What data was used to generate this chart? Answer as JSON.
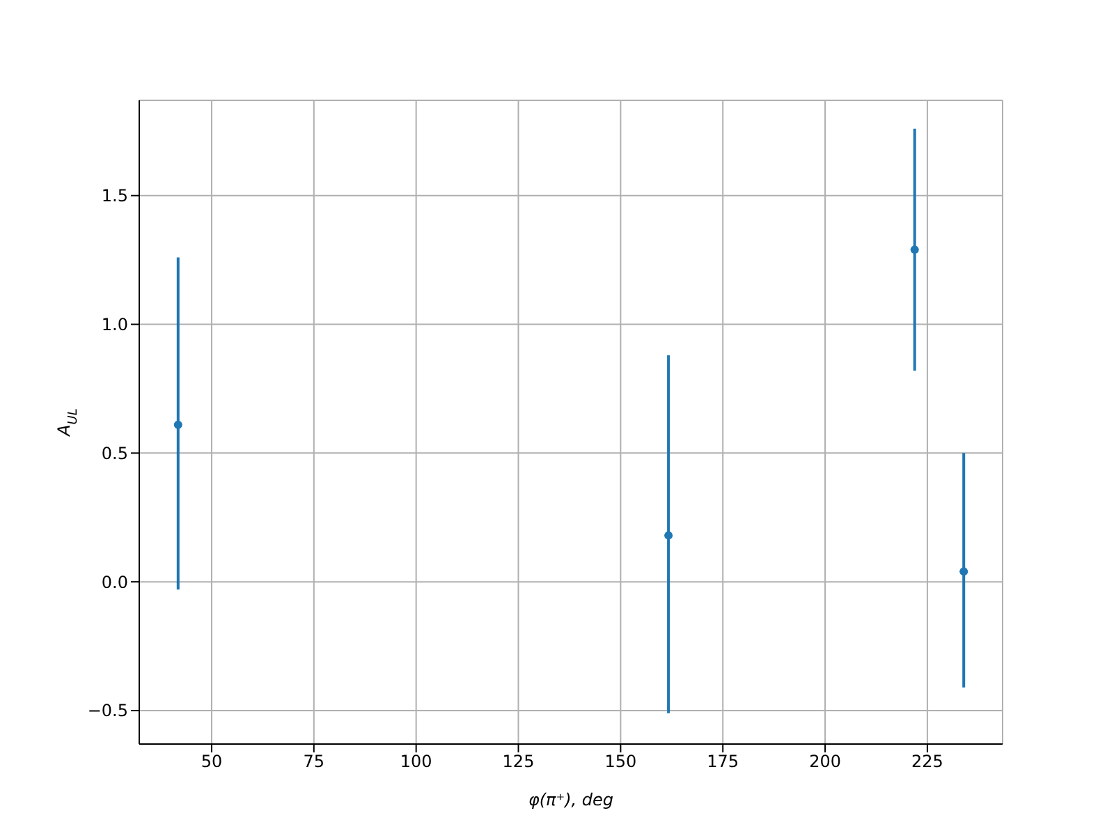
{
  "chart_data": {
    "type": "scatter",
    "xlabel": "φ(π⁺), deg",
    "ylabel": "A$_{UL}$",
    "x": [
      41.8,
      161.7,
      221.9,
      233.9
    ],
    "values": [
      0.61,
      0.18,
      1.29,
      0.04
    ],
    "errors": [
      [
        -0.03,
        1.26
      ],
      [
        -0.51,
        0.88
      ],
      [
        0.82,
        1.76
      ],
      [
        -0.41,
        0.5
      ]
    ],
    "color": "#1f77b4",
    "marker": "circle",
    "grid": true,
    "xlim": [
      32.3,
      243.4
    ],
    "xticks": [
      50,
      75,
      100,
      125,
      150,
      175,
      200,
      225
    ],
    "ylim": [
      -0.63,
      1.87
    ],
    "yticks": [
      -0.5,
      {
        "value": 0,
        "label": "0.0"
      },
      0.5,
      {
        "value": 1,
        "label": "1.0"
      },
      1.5
    ]
  }
}
